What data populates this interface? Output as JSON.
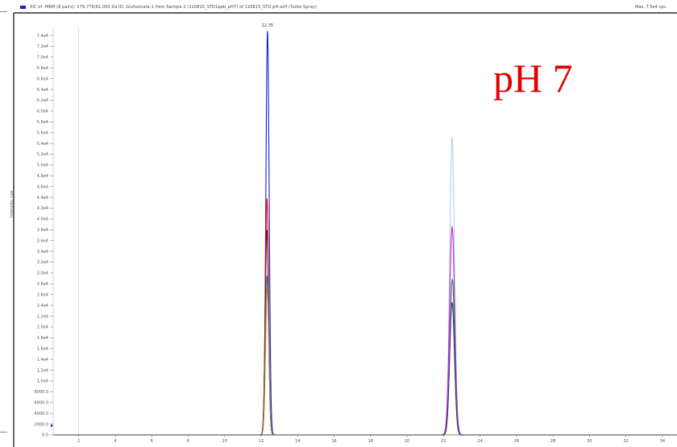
{
  "header": {
    "title": "XIC of -MRM (8 pairs): 179.776/62.000 Da ID: Glufosinate-1 from Sample 2 (120815_STD1ppb_pH7) of 120815_STD-pH.wiff (Turbo Spray)",
    "max_label": "Max. 7.5e4 cps."
  },
  "annotation": "pH 7",
  "chart_data": {
    "type": "line",
    "ylabel": "Intensity, cps",
    "xlabel": "",
    "xlim": [
      0.6,
      34.8
    ],
    "ylim": [
      0,
      75500
    ],
    "x_ticks": [
      2,
      4,
      6,
      8,
      10,
      12,
      14,
      16,
      18,
      20,
      22,
      24,
      26,
      28,
      30,
      32,
      34
    ],
    "y_ticks": [
      0,
      2000,
      4000,
      6000,
      8000,
      10000,
      12000,
      14000,
      16000,
      18000,
      20000,
      22000,
      24000,
      26000,
      28000,
      30000,
      32000,
      34000,
      36000,
      38000,
      40000,
      42000,
      44000,
      46000,
      48000,
      50000,
      52000,
      54000,
      56000,
      58000,
      60000,
      62000,
      64000,
      66000,
      68000,
      70000,
      72000,
      74000
    ],
    "y_tick_labels": [
      "0.0",
      "2000.0",
      "4000.0",
      "6000.0",
      "8000.0",
      "1.0e4",
      "1.2e4",
      "1.4e4",
      "1.6e4",
      "1.8e4",
      "2.0e4",
      "2.2e4",
      "2.4e4",
      "2.6e4",
      "2.8e4",
      "3.0e4",
      "3.2e4",
      "3.4e4",
      "3.6e4",
      "3.8e4",
      "4.0e4",
      "4.2e4",
      "4.4e4",
      "4.6e4",
      "4.8e4",
      "5.0e4",
      "5.2e4",
      "5.4e4",
      "5.6e4",
      "5.8e4",
      "6.0e4",
      "6.2e4",
      "6.4e4",
      "6.6e4",
      "6.8e4",
      "7.0e4",
      "7.2e4",
      "7.4e4"
    ],
    "peak_labels": [
      {
        "x": 12.35,
        "text": "12.35"
      }
    ],
    "reference_lines": [
      {
        "x": 2.0,
        "style": "dotted"
      }
    ],
    "series": [
      {
        "color": "#1a1adc",
        "peaks": [
          {
            "rt": 12.35,
            "height": 74800,
            "width": 0.09
          }
        ]
      },
      {
        "color": "#aad0f2",
        "peaks": [
          {
            "rt": 22.47,
            "height": 55200,
            "width": 0.13
          }
        ]
      },
      {
        "color": "#ee1515",
        "peaks": [
          {
            "rt": 12.32,
            "height": 43800,
            "width": 0.09
          }
        ]
      },
      {
        "color": "#cc22cc",
        "peaks": [
          {
            "rt": 22.47,
            "height": 38500,
            "width": 0.14
          }
        ]
      },
      {
        "color": "#7b1e1e",
        "peaks": [
          {
            "rt": 12.32,
            "height": 38000,
            "width": 0.09
          }
        ]
      },
      {
        "color": "#2e7f6f",
        "peaks": [
          {
            "rt": 12.33,
            "height": 29500,
            "width": 0.09
          },
          {
            "rt": 22.48,
            "height": 28800,
            "width": 0.13
          }
        ]
      },
      {
        "color": "#9a8a3c",
        "peaks": [
          {
            "rt": 12.33,
            "height": 27500,
            "width": 0.09
          }
        ]
      },
      {
        "color": "#3a3a6e",
        "peaks": [
          {
            "rt": 22.47,
            "height": 24500,
            "width": 0.13
          }
        ]
      }
    ]
  }
}
